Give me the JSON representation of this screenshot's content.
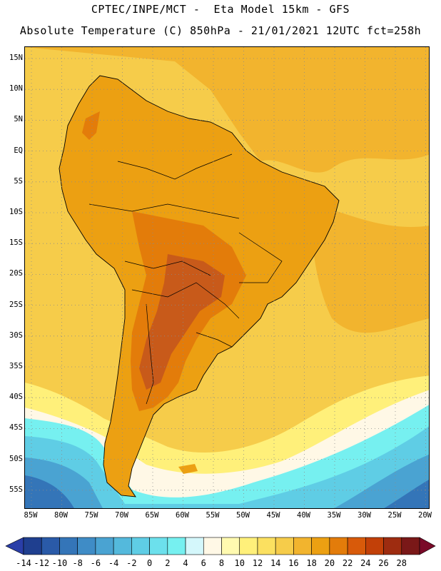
{
  "title_line1": "CPTEC/INPE/MCT -  Eta Model 15km - GFS",
  "title_line2": "Absolute Temperature (C) 850hPa - 21/01/2021 12UTC fct=258h",
  "lat_labels": [
    "15N",
    "10N",
    "5N",
    "EQ",
    "5S",
    "10S",
    "15S",
    "20S",
    "25S",
    "30S",
    "35S",
    "40S",
    "45S",
    "50S",
    "55S"
  ],
  "lon_labels": [
    "85W",
    "80W",
    "75W",
    "70W",
    "65W",
    "60W",
    "55W",
    "50W",
    "45W",
    "40W",
    "35W",
    "30W",
    "25W",
    "20W"
  ],
  "colorbar": {
    "labels": [
      "-14",
      "-12",
      "-10",
      "-8",
      "-6",
      "-4",
      "-2",
      "0",
      "2",
      "4",
      "6",
      "8",
      "10",
      "12",
      "14",
      "16",
      "18",
      "20",
      "22",
      "24",
      "26",
      "28"
    ],
    "colors": [
      "#1f3f8f",
      "#2a5aa8",
      "#3475b8",
      "#3f8cc6",
      "#4aa3d2",
      "#54b9dc",
      "#5fcde5",
      "#6ce0ec",
      "#76f0f0",
      "#d4f7fb",
      "#fff8e6",
      "#fffab0",
      "#fff07a",
      "#fbe060",
      "#f6cc4a",
      "#f2b42e",
      "#eca012",
      "#e37c0a",
      "#d85a0a",
      "#c24008",
      "#9e2c10",
      "#7a1818"
    ],
    "low_arrow": "#2a3ea8",
    "high_arrow": "#7a0a28"
  },
  "map_colors": {
    "ocean_tropical": "#f2b42e",
    "ocean_subtropical": "#f6cc4a",
    "warm_land": "#eca012",
    "hot_land": "#e37c0a",
    "hottest": "#c85a1a",
    "cool_south_1": "#fff07a",
    "cool_south_2": "#fff8e6",
    "cold_1": "#76f0f0",
    "cold_2": "#5fcde5",
    "cold_3": "#4aa3d2",
    "cold_4": "#3475b8",
    "coast": "#000000",
    "grid": "#8a8a8a"
  }
}
